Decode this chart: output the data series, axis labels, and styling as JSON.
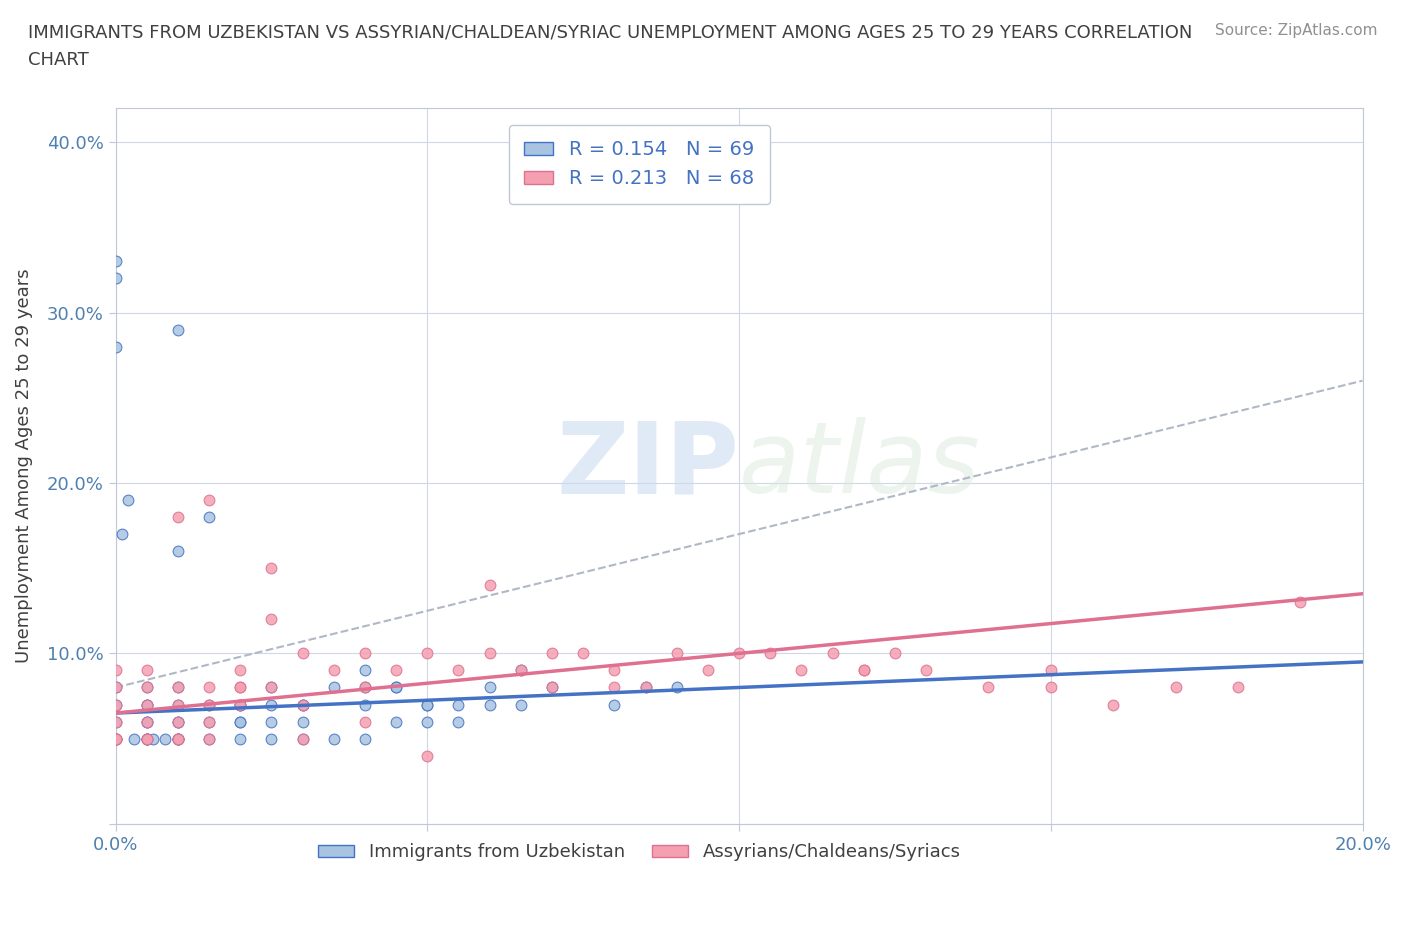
{
  "title_line1": "IMMIGRANTS FROM UZBEKISTAN VS ASSYRIAN/CHALDEAN/SYRIAC UNEMPLOYMENT AMONG AGES 25 TO 29 YEARS CORRELATION",
  "title_line2": "CHART",
  "source": "Source: ZipAtlas.com",
  "ylabel": "Unemployment Among Ages 25 to 29 years",
  "xlim": [
    0,
    0.2
  ],
  "ylim": [
    0,
    0.42
  ],
  "blue_R": 0.154,
  "blue_N": 69,
  "pink_R": 0.213,
  "pink_N": 68,
  "blue_color": "#a8c4e0",
  "pink_color": "#f4a0b0",
  "blue_line_color": "#4472c4",
  "pink_line_color": "#e07090",
  "dashed_line_color": "#b0b8c8",
  "watermark_zip": "ZIP",
  "watermark_atlas": "atlas",
  "legend_label_blue": "Immigrants from Uzbekistan",
  "legend_label_pink": "Assyrians/Chaldeans/Syriacs",
  "blue_scatter_x": [
    0.0,
    0.0,
    0.0,
    0.0,
    0.0,
    0.005,
    0.005,
    0.005,
    0.005,
    0.005,
    0.01,
    0.01,
    0.01,
    0.01,
    0.01,
    0.01,
    0.01,
    0.015,
    0.015,
    0.015,
    0.015,
    0.02,
    0.02,
    0.02,
    0.025,
    0.025,
    0.025,
    0.03,
    0.03,
    0.03,
    0.035,
    0.035,
    0.04,
    0.04,
    0.04,
    0.045,
    0.045,
    0.05,
    0.05,
    0.055,
    0.055,
    0.06,
    0.065,
    0.07,
    0.08,
    0.085,
    0.09,
    0.0,
    0.0,
    0.0,
    0.005,
    0.005,
    0.005,
    0.01,
    0.01,
    0.02,
    0.02,
    0.025,
    0.03,
    0.04,
    0.045,
    0.05,
    0.06,
    0.065,
    0.001,
    0.002,
    0.003,
    0.006,
    0.008
  ],
  "blue_scatter_y": [
    0.05,
    0.05,
    0.06,
    0.07,
    0.33,
    0.05,
    0.05,
    0.06,
    0.07,
    0.08,
    0.05,
    0.05,
    0.06,
    0.07,
    0.08,
    0.16,
    0.29,
    0.05,
    0.06,
    0.07,
    0.18,
    0.05,
    0.06,
    0.07,
    0.05,
    0.06,
    0.08,
    0.05,
    0.06,
    0.07,
    0.05,
    0.08,
    0.05,
    0.07,
    0.09,
    0.06,
    0.08,
    0.06,
    0.07,
    0.06,
    0.07,
    0.07,
    0.07,
    0.08,
    0.07,
    0.08,
    0.08,
    0.28,
    0.32,
    0.08,
    0.05,
    0.06,
    0.07,
    0.05,
    0.06,
    0.06,
    0.07,
    0.07,
    0.07,
    0.08,
    0.08,
    0.07,
    0.08,
    0.09,
    0.17,
    0.19,
    0.05,
    0.05,
    0.05
  ],
  "pink_scatter_x": [
    0.0,
    0.0,
    0.0,
    0.0,
    0.0,
    0.0,
    0.005,
    0.005,
    0.005,
    0.005,
    0.005,
    0.01,
    0.01,
    0.01,
    0.01,
    0.01,
    0.015,
    0.015,
    0.015,
    0.015,
    0.02,
    0.02,
    0.02,
    0.025,
    0.025,
    0.03,
    0.03,
    0.035,
    0.04,
    0.04,
    0.045,
    0.05,
    0.055,
    0.06,
    0.065,
    0.07,
    0.075,
    0.08,
    0.085,
    0.09,
    0.095,
    0.1,
    0.105,
    0.11,
    0.115,
    0.12,
    0.125,
    0.13,
    0.14,
    0.15,
    0.0,
    0.005,
    0.01,
    0.015,
    0.02,
    0.025,
    0.03,
    0.04,
    0.05,
    0.06,
    0.07,
    0.08,
    0.12,
    0.15,
    0.16,
    0.17,
    0.18,
    0.19
  ],
  "pink_scatter_y": [
    0.05,
    0.05,
    0.06,
    0.07,
    0.08,
    0.09,
    0.05,
    0.06,
    0.07,
    0.08,
    0.09,
    0.05,
    0.06,
    0.07,
    0.08,
    0.18,
    0.05,
    0.06,
    0.07,
    0.19,
    0.07,
    0.08,
    0.09,
    0.08,
    0.15,
    0.05,
    0.1,
    0.09,
    0.08,
    0.1,
    0.09,
    0.1,
    0.09,
    0.1,
    0.09,
    0.1,
    0.1,
    0.09,
    0.08,
    0.1,
    0.09,
    0.1,
    0.1,
    0.09,
    0.1,
    0.09,
    0.1,
    0.09,
    0.08,
    0.09,
    0.05,
    0.05,
    0.05,
    0.08,
    0.08,
    0.12,
    0.07,
    0.06,
    0.04,
    0.14,
    0.08,
    0.08,
    0.09,
    0.08,
    0.07,
    0.08,
    0.08,
    0.13
  ],
  "blue_trend_x": [
    0.0,
    0.2
  ],
  "blue_trend_y": [
    0.065,
    0.095
  ],
  "pink_trend_x": [
    0.0,
    0.2
  ],
  "pink_trend_y": [
    0.065,
    0.135
  ],
  "dashed_trend_x": [
    0.0,
    0.2
  ],
  "dashed_trend_y": [
    0.08,
    0.26
  ]
}
